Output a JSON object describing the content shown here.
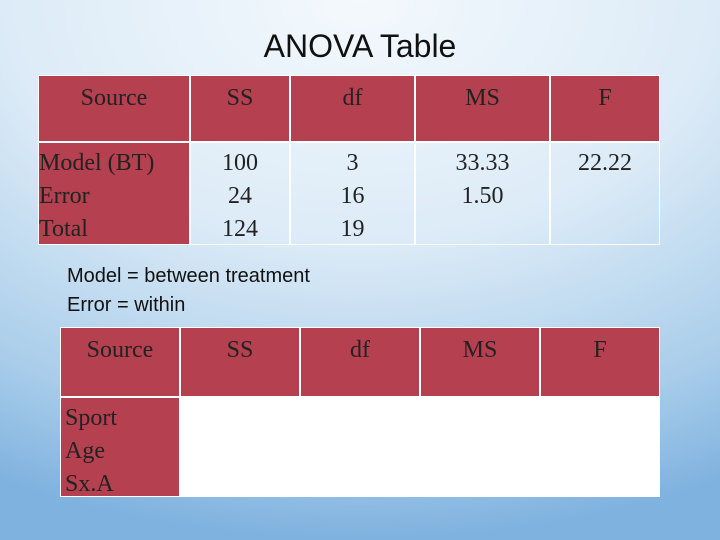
{
  "title": "ANOVA Table",
  "table1": {
    "header": [
      "Source",
      "SS",
      "df",
      "MS",
      "F"
    ],
    "body": [
      [
        "Model (BT)",
        "Error",
        "Total"
      ],
      [
        "100",
        "24",
        "124"
      ],
      [
        "3",
        "16",
        "19"
      ],
      [
        "33.33",
        "1.50"
      ],
      [
        "22.22"
      ]
    ]
  },
  "notes": [
    "Model = between treatment",
    "Error = within"
  ],
  "table2": {
    "header": [
      "Source",
      "SS",
      "df",
      "MS",
      "F"
    ],
    "body": [
      [
        "Sport",
        "Age",
        "Sx.A"
      ],
      [],
      [],
      [],
      []
    ]
  }
}
